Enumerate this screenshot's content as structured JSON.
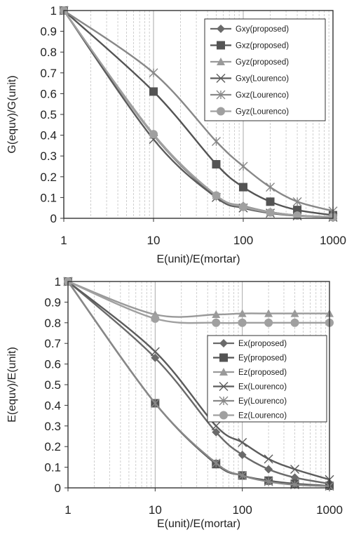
{
  "chart_data": [
    {
      "type": "line",
      "xscale": "log",
      "xlim": [
        1,
        1000
      ],
      "ylim": [
        0,
        1
      ],
      "xticks": [
        "1",
        "10",
        "100",
        "1000"
      ],
      "yticks": [
        "0",
        "0.1",
        "0.2",
        "0.3",
        "0.4",
        "0.5",
        "0.6",
        "0.7",
        "0.8",
        "0.9",
        "1"
      ],
      "xlabel": "E(unit)/E(mortar)",
      "ylabel": "G(equv)/G(unit)",
      "grid": "vertical log grid lines",
      "legend_position": "top-right",
      "series": [
        {
          "name": "Gxy(proposed)",
          "marker": "diamond",
          "color": "#6a6a6a",
          "x": [
            1,
            10,
            50,
            100,
            200,
            400,
            1000
          ],
          "y": [
            1,
            0.4,
            0.105,
            0.06,
            0.03,
            0.014,
            0.006
          ]
        },
        {
          "name": "Gxz(proposed)",
          "marker": "square",
          "color": "#545454",
          "x": [
            1,
            10,
            50,
            100,
            200,
            400,
            1000
          ],
          "y": [
            1,
            0.61,
            0.26,
            0.15,
            0.08,
            0.04,
            0.015
          ]
        },
        {
          "name": "Gyz(proposed)",
          "marker": "triangle",
          "color": "#9a9a9a",
          "x": [
            1,
            10,
            50,
            100,
            200,
            400,
            1000
          ],
          "y": [
            1,
            0.4,
            0.11,
            0.06,
            0.03,
            0.014,
            0.006
          ]
        },
        {
          "name": "Gxy(Lourenco)",
          "marker": "x",
          "color": "#5c5c5c",
          "x": [
            1,
            10,
            50,
            100,
            200,
            400,
            1000
          ],
          "y": [
            1,
            0.38,
            0.1,
            0.05,
            0.025,
            0.012,
            0.005
          ]
        },
        {
          "name": "Gxz(Lourenco)",
          "marker": "star",
          "color": "#888888",
          "x": [
            1,
            10,
            50,
            100,
            200,
            400,
            1000
          ],
          "y": [
            1,
            0.7,
            0.37,
            0.25,
            0.15,
            0.08,
            0.035
          ]
        },
        {
          "name": "Gyz(Lourenco)",
          "marker": "circle",
          "color": "#a0a0a0",
          "x": [
            1,
            10,
            50,
            100,
            200,
            400,
            1000
          ],
          "y": [
            1,
            0.405,
            0.11,
            0.055,
            0.028,
            0.013,
            0.005
          ]
        }
      ]
    },
    {
      "type": "line",
      "xscale": "log",
      "xlim": [
        1,
        1000
      ],
      "ylim": [
        0,
        1
      ],
      "xticks": [
        "1",
        "10",
        "100",
        "1000"
      ],
      "yticks": [
        "0",
        "0.1",
        "0.2",
        "0.3",
        "0.4",
        "0.5",
        "0.6",
        "0.7",
        "0.8",
        "0.9",
        "1"
      ],
      "xlabel": "E(unit)/E(mortar)",
      "ylabel": "E(equv)/E(unit)",
      "grid": "vertical log grid lines",
      "legend_position": "right",
      "series": [
        {
          "name": "Ex(proposed)",
          "marker": "diamond",
          "color": "#6a6a6a",
          "x": [
            1,
            10,
            50,
            100,
            200,
            400,
            1000
          ],
          "y": [
            1,
            0.63,
            0.27,
            0.16,
            0.09,
            0.05,
            0.02
          ]
        },
        {
          "name": "Ey(proposed)",
          "marker": "square",
          "color": "#545454",
          "x": [
            1,
            10,
            50,
            100,
            200,
            400,
            1000
          ],
          "y": [
            1,
            0.41,
            0.115,
            0.06,
            0.035,
            0.02,
            0.01
          ]
        },
        {
          "name": "Ez(proposed)",
          "marker": "triangle",
          "color": "#9a9a9a",
          "x": [
            1,
            10,
            50,
            100,
            200,
            400,
            1000
          ],
          "y": [
            1,
            0.84,
            0.84,
            0.845,
            0.845,
            0.845,
            0.845
          ]
        },
        {
          "name": "Ex(Lourenco)",
          "marker": "x",
          "color": "#5c5c5c",
          "x": [
            1,
            10,
            50,
            100,
            200,
            400,
            1000
          ],
          "y": [
            1,
            0.66,
            0.3,
            0.22,
            0.14,
            0.09,
            0.04
          ]
        },
        {
          "name": "Ey(Lourenco)",
          "marker": "star",
          "color": "#888888",
          "x": [
            1,
            10,
            50,
            100,
            200,
            400,
            1000
          ],
          "y": [
            1,
            0.41,
            0.12,
            0.06,
            0.03,
            0.015,
            0.008
          ]
        },
        {
          "name": "Ez(Lourenco)",
          "marker": "circle",
          "color": "#a0a0a0",
          "x": [
            1,
            10,
            50,
            100,
            200,
            400,
            1000
          ],
          "y": [
            1,
            0.82,
            0.8,
            0.8,
            0.8,
            0.8,
            0.8
          ]
        }
      ]
    }
  ]
}
